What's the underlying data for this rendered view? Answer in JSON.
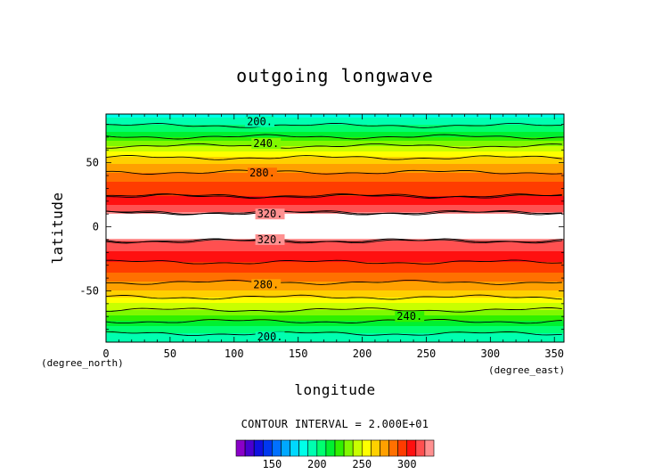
{
  "chart_data": {
    "type": "heatmap",
    "title": "outgoing longwave",
    "xlabel": "longitude",
    "ylabel": "latitude",
    "x_unit": "(degree_east)",
    "y_unit": "(degree_north)",
    "xlim": [
      0,
      357.5
    ],
    "ylim": [
      -90,
      88
    ],
    "x_ticks": [
      0,
      50,
      100,
      150,
      200,
      250,
      300,
      350
    ],
    "y_ticks": [
      50,
      0,
      -50
    ],
    "contour_interval_text": "CONTOUR INTERVAL = 2.000E+01",
    "contour_labels": [
      {
        "text": "200.",
        "lon": 120,
        "lat": 82
      },
      {
        "text": "240.",
        "lon": 125,
        "lat": 65
      },
      {
        "text": "280.",
        "lon": 122,
        "lat": 42
      },
      {
        "text": "320.",
        "lon": 128,
        "lat": 10
      },
      {
        "text": "320.",
        "lon": 128,
        "lat": -10
      },
      {
        "text": "280.",
        "lon": 125,
        "lat": -45
      },
      {
        "text": "240.",
        "lon": 237,
        "lat": -70
      },
      {
        "text": "200.",
        "lon": 128,
        "lat": -86
      }
    ],
    "latitude_profile": [
      {
        "lat": 88,
        "value": 185
      },
      {
        "lat": 80,
        "value": 198
      },
      {
        "lat": 72,
        "value": 215
      },
      {
        "lat": 64,
        "value": 238
      },
      {
        "lat": 56,
        "value": 256
      },
      {
        "lat": 48,
        "value": 272
      },
      {
        "lat": 40,
        "value": 284
      },
      {
        "lat": 32,
        "value": 293
      },
      {
        "lat": 24,
        "value": 300
      },
      {
        "lat": 16,
        "value": 312
      },
      {
        "lat": 11,
        "value": 320
      },
      {
        "lat": 8,
        "value": 340
      },
      {
        "lat": 0,
        "value": 345
      },
      {
        "lat": -8,
        "value": 340
      },
      {
        "lat": -11,
        "value": 320
      },
      {
        "lat": -16,
        "value": 314
      },
      {
        "lat": -24,
        "value": 304
      },
      {
        "lat": -32,
        "value": 295
      },
      {
        "lat": -40,
        "value": 285
      },
      {
        "lat": -48,
        "value": 273
      },
      {
        "lat": -56,
        "value": 258
      },
      {
        "lat": -64,
        "value": 242
      },
      {
        "lat": -72,
        "value": 224
      },
      {
        "lat": -80,
        "value": 205
      },
      {
        "lat": -90,
        "value": 190
      }
    ],
    "colorbar": {
      "min": 110,
      "max": 330,
      "step": 10,
      "ticks": [
        150,
        200,
        250,
        300
      ],
      "colors": [
        "#8a00c8",
        "#4a00d0",
        "#1010e0",
        "#0038f0",
        "#0070ff",
        "#00a8ff",
        "#00d8ff",
        "#00ffe8",
        "#00ffb0",
        "#00ff70",
        "#00f030",
        "#30f000",
        "#80f800",
        "#c8ff00",
        "#ffff00",
        "#ffd000",
        "#ffa000",
        "#ff7000",
        "#ff3c00",
        "#ff1010",
        "#ff5050",
        "#ff9090"
      ]
    },
    "above_max_color": "#ffffff"
  }
}
